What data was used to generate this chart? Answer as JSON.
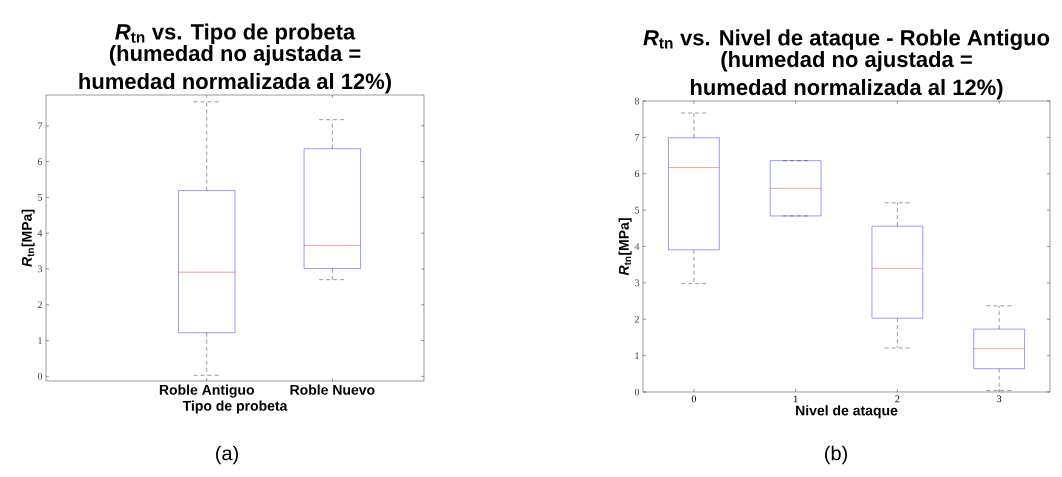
{
  "chart_data": [
    {
      "type": "box",
      "title": "*R*$_{tn}$ vs. Tipo de probeta",
      "subtitle": "(humedad no ajustada = humedad normalizada al 12%)",
      "xlabel": "Tipo de probeta",
      "ylabel": "*R*$_{tn}$[MPa]",
      "categories": [
        "Roble Antiguo",
        "Roble Nuevo"
      ],
      "boxes": [
        {
          "low": 0.03,
          "q1": 1.22,
          "median": 2.91,
          "q3": 5.19,
          "high": 7.67
        },
        {
          "low": 2.7,
          "q1": 3.01,
          "median": 3.66,
          "q3": 6.36,
          "high": 7.17
        }
      ],
      "ylim": [
        -0.13,
        7.86
      ],
      "yticks": [
        0,
        1,
        2,
        3,
        4,
        5,
        6,
        7
      ],
      "annotations": [
        "(a)"
      ]
    },
    {
      "type": "box",
      "title": "*R*$_{tn}$ vs. Nivel de ataque - Roble Antiguo",
      "subtitle": "(humedad no ajustada = humedad normalizada al 12%)",
      "xlabel": "Nivel de ataque",
      "ylabel": "*R*$_{tn}$[MPa]",
      "categories": [
        "0",
        "1",
        "2",
        "3"
      ],
      "boxes": [
        {
          "low": 2.98,
          "q1": 3.91,
          "median": 6.17,
          "q3": 6.99,
          "high": 7.67
        },
        {
          "low": 4.84,
          "q1": 4.84,
          "median": 5.6,
          "q3": 6.36,
          "high": 6.36
        },
        {
          "low": 1.21,
          "q1": 2.03,
          "median": 3.4,
          "q3": 4.56,
          "high": 5.2
        },
        {
          "low": 0.04,
          "q1": 0.64,
          "median": 1.19,
          "q3": 1.73,
          "high": 2.37
        }
      ],
      "ylim": [
        0,
        8
      ],
      "yticks": [
        0,
        1,
        2,
        3,
        4,
        5,
        6,
        7,
        8
      ],
      "annotations": [
        "(b)"
      ]
    }
  ]
}
